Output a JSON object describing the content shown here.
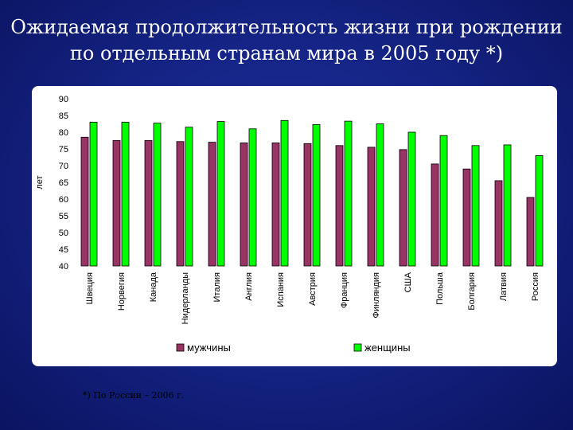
{
  "title": {
    "line1": "Ожидаемая продолжительность жизни при рождении",
    "line2": "по отдельным странам мира в 2005 году *)"
  },
  "footnote": "*) По России – 2006 г.",
  "chart_data": {
    "type": "bar",
    "ylabel": "лет",
    "xlabel": "",
    "ylim": [
      40,
      90
    ],
    "yticks": [
      40,
      45,
      50,
      55,
      60,
      65,
      70,
      75,
      80,
      85,
      90
    ],
    "grid": false,
    "legend_position": "bottom",
    "categories": [
      "Швеция",
      "Норвегия",
      "Канада",
      "Нидерланды",
      "Италия",
      "Англия",
      "Испания",
      "Австрия",
      "Франция",
      "Финляндия",
      "США",
      "Польша",
      "Болгария",
      "Латвия",
      "Россия"
    ],
    "series": [
      {
        "name": "мужчины",
        "color": "#993366",
        "values": [
          78.5,
          77.5,
          77.5,
          77.2,
          77.0,
          76.8,
          76.8,
          76.6,
          76.0,
          75.5,
          74.8,
          70.5,
          69.0,
          65.5,
          60.5
        ]
      },
      {
        "name": "женщины",
        "color": "#00ff00",
        "values": [
          83.0,
          83.0,
          82.7,
          81.5,
          83.2,
          81.0,
          83.5,
          82.3,
          83.3,
          82.5,
          80.0,
          79.0,
          76.0,
          76.2,
          73.0
        ]
      }
    ]
  }
}
